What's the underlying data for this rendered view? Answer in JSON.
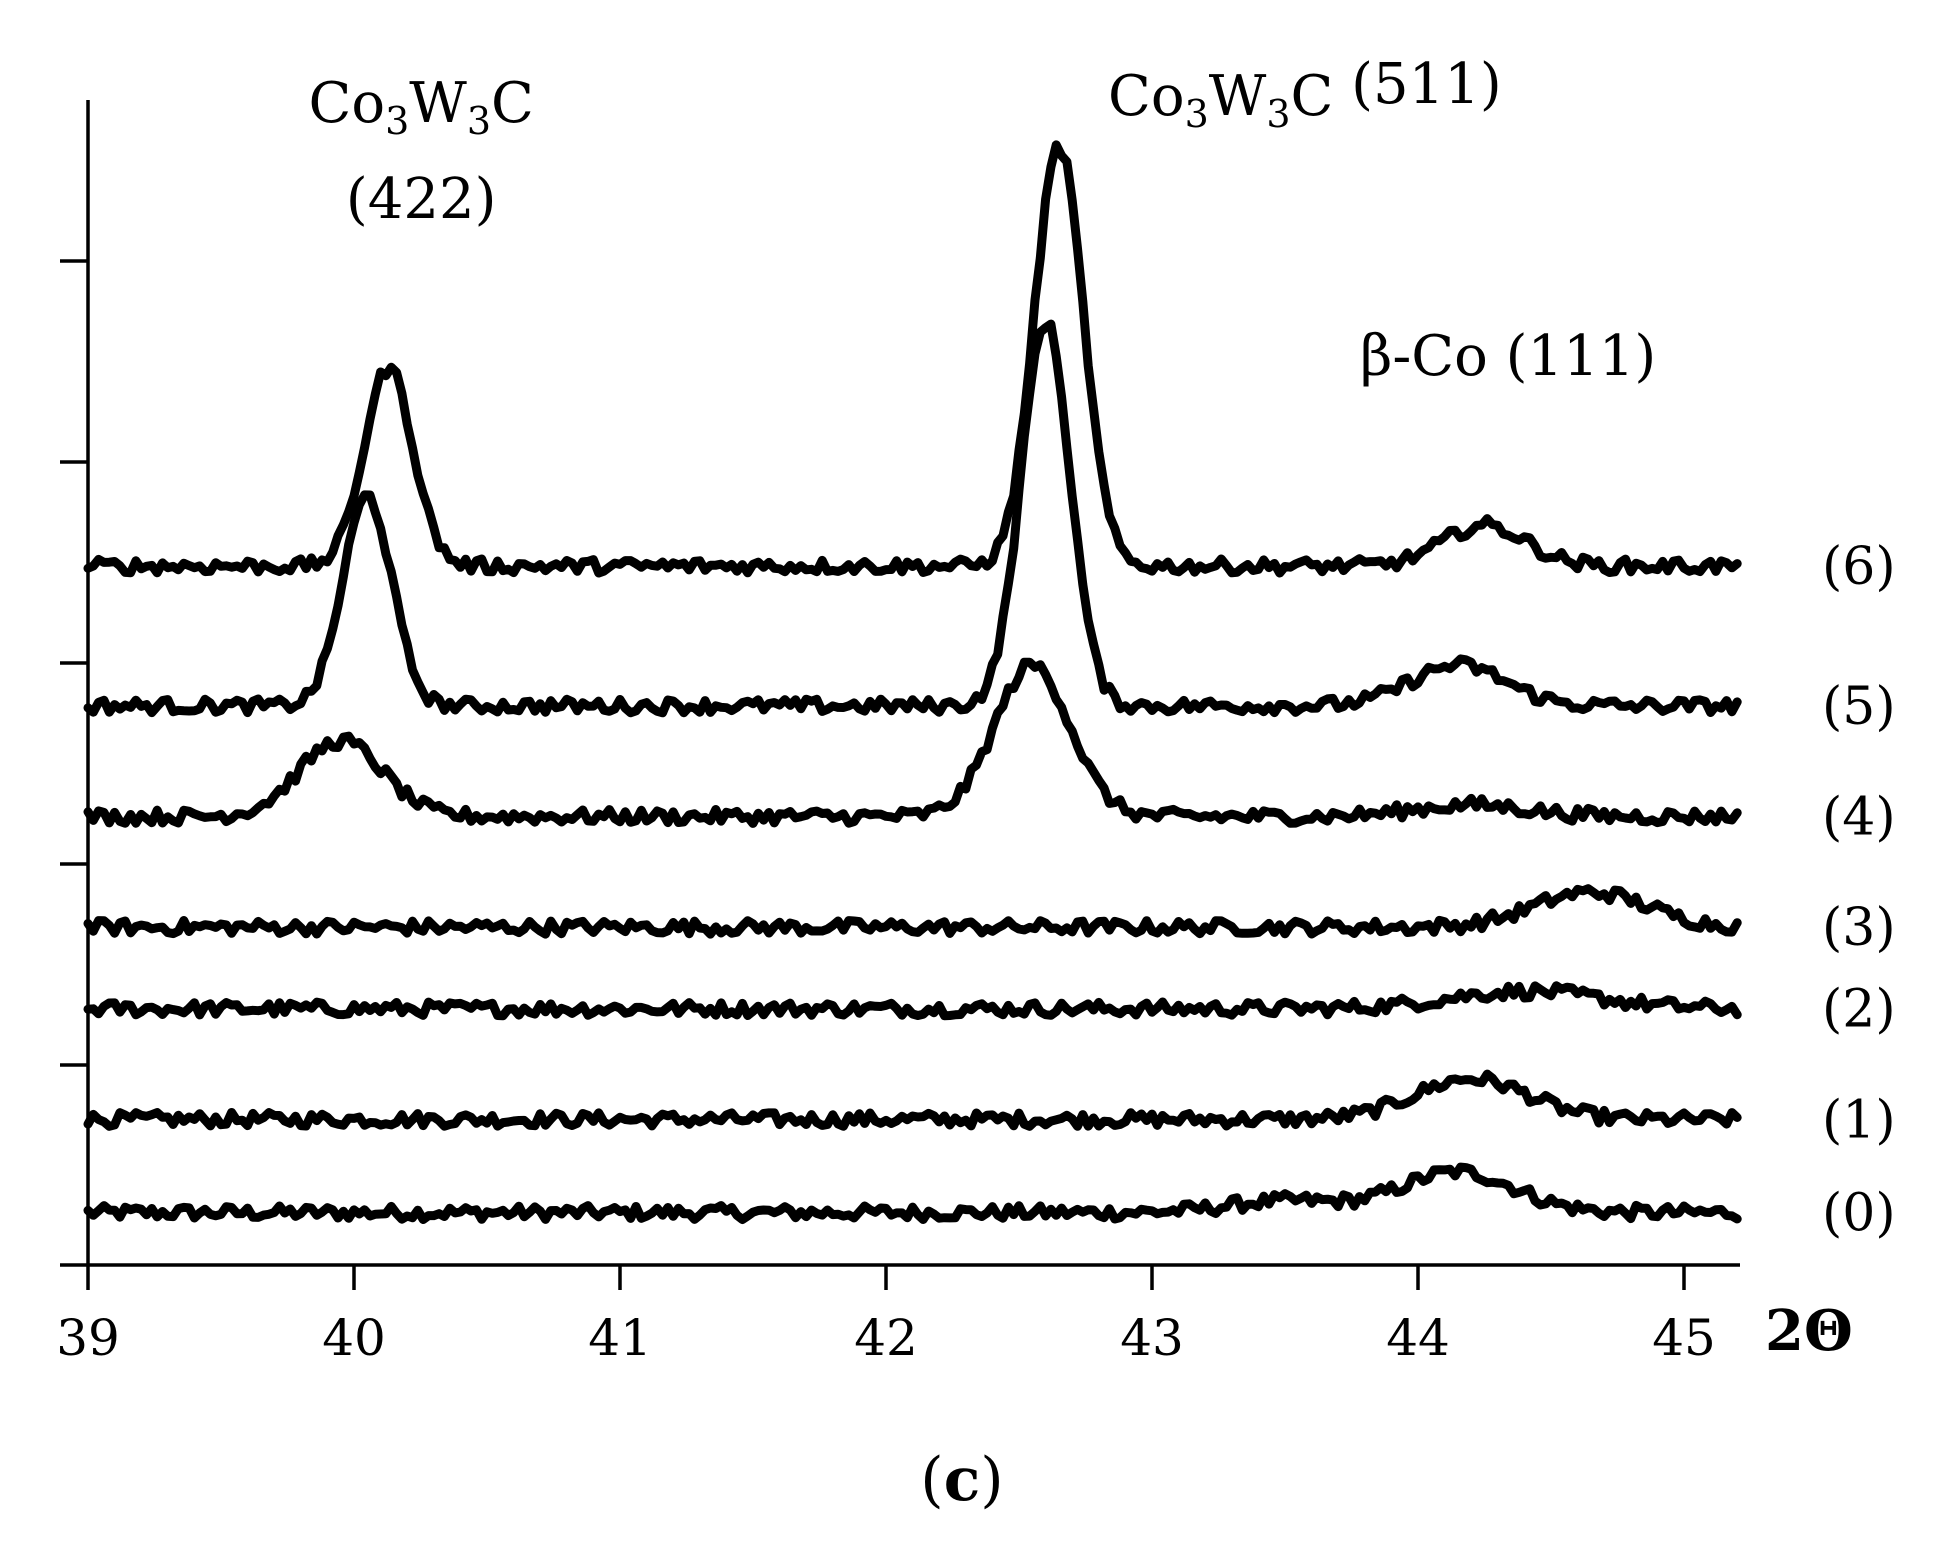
{
  "chart_data": {
    "type": "line",
    "xlabel": "2Θ",
    "ylabel": "",
    "xlim": [
      39,
      45.2
    ],
    "ylim": [
      0,
      1
    ],
    "x_ticks": [
      "39",
      "40",
      "41",
      "42",
      "43",
      "44",
      "45"
    ],
    "y_tick_count": 5,
    "grid": false,
    "legend": "none",
    "panel_label": {
      "open": "(",
      "letter": "c",
      "close": ")"
    },
    "annotations": [
      {
        "parts": [
          "Co",
          "3",
          "W",
          "3",
          "C"
        ],
        "line2": "(422)",
        "x": 40.2
      },
      {
        "parts": [
          "Co",
          "3",
          "W",
          "3",
          "C",
          " (511)"
        ],
        "x": 42.6
      },
      {
        "text": "β-Co (111)",
        "x": 44.4
      }
    ],
    "noise_amplitude": 0.006,
    "series": [
      {
        "label": "(0)",
        "baseline": 0.045,
        "peaks": [
          {
            "center": 44.15,
            "height": 0.035,
            "width": 0.3
          },
          {
            "center": 43.5,
            "height": 0.01,
            "width": 0.3
          }
        ]
      },
      {
        "label": "(1)",
        "baseline": 0.125,
        "peaks": [
          {
            "center": 44.2,
            "height": 0.035,
            "width": 0.3
          }
        ]
      },
      {
        "label": "(2)",
        "baseline": 0.22,
        "peaks": [
          {
            "center": 44.4,
            "height": 0.015,
            "width": 0.4
          }
        ]
      },
      {
        "label": "(3)",
        "baseline": 0.29,
        "peaks": [
          {
            "center": 44.65,
            "height": 0.03,
            "width": 0.3
          }
        ]
      },
      {
        "label": "(4)",
        "baseline": 0.385,
        "peaks": [
          {
            "center": 39.95,
            "height": 0.065,
            "width": 0.22
          },
          {
            "center": 42.55,
            "height": 0.13,
            "width": 0.2
          },
          {
            "center": 44.2,
            "height": 0.01,
            "width": 0.3
          }
        ]
      },
      {
        "label": "(5)",
        "baseline": 0.48,
        "peaks": [
          {
            "center": 40.05,
            "height": 0.18,
            "width": 0.13
          },
          {
            "center": 42.6,
            "height": 0.33,
            "width": 0.13
          },
          {
            "center": 44.15,
            "height": 0.035,
            "width": 0.25
          }
        ]
      },
      {
        "label": "(6)",
        "baseline": 0.6,
        "peaks": [
          {
            "center": 40.13,
            "height": 0.17,
            "width": 0.13
          },
          {
            "center": 42.65,
            "height": 0.36,
            "width": 0.13
          },
          {
            "center": 44.25,
            "height": 0.035,
            "width": 0.22
          }
        ]
      }
    ]
  }
}
